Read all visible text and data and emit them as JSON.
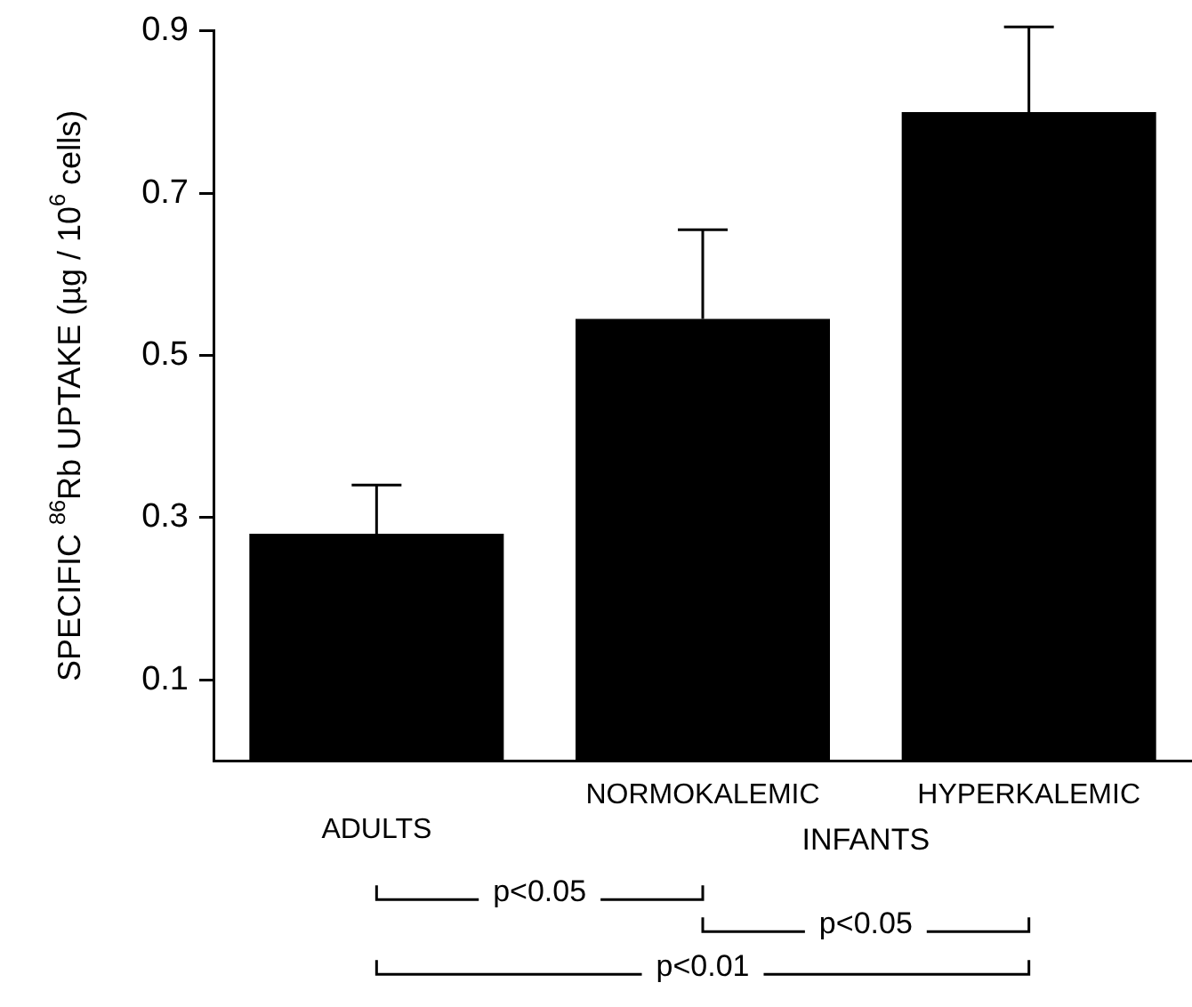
{
  "chart_data": {
    "type": "bar",
    "ylabel": "SPECIFIC $^{86}$Rb UPTAKE (µg / 10$^{6}$ cells)",
    "categories": [
      "ADULTS",
      "NORMOKALEMIC",
      "HYPERKALEMIC"
    ],
    "values": [
      0.28,
      0.545,
      0.8
    ],
    "color": "#000000",
    "errors": [
      [
        0.28,
        0.34
      ],
      [
        0.545,
        0.655
      ],
      [
        0.8,
        0.905
      ]
    ],
    "ylim": [
      0,
      0.9
    ],
    "yticks": [
      0.1,
      0.3,
      0.5,
      0.7,
      0.9
    ],
    "grid": false,
    "legend": false,
    "annotations": [
      "INFANTS",
      "p<0.05",
      "p<0.05",
      "p<0.01"
    ]
  }
}
